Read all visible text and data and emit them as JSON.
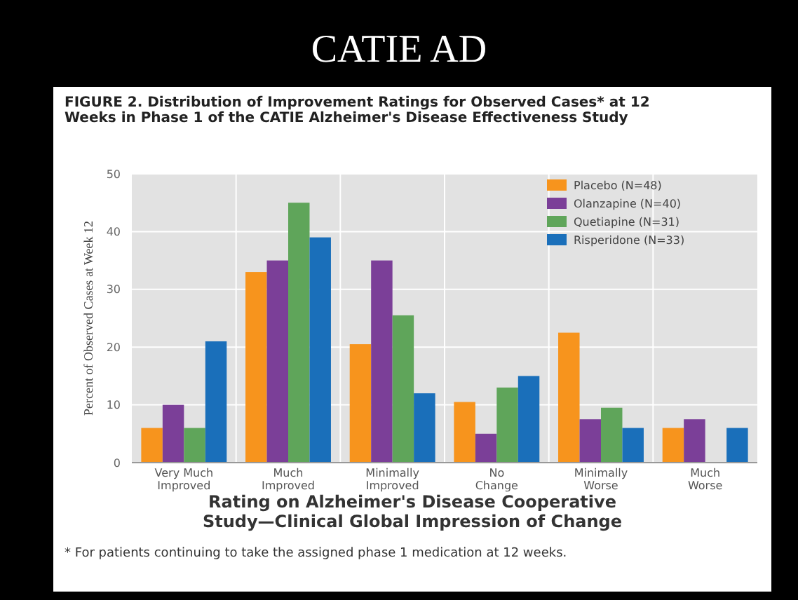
{
  "chart_data": {
    "type": "bar",
    "title": "CATIE AD",
    "subtitle": "FIGURE 2. Distribution of Improvement Ratings for Observed Cases* at 12 Weeks in Phase 1 of the CATIE Alzheimer's Disease Effectiveness Study",
    "xlabel": "Rating on Alzheimer's Disease Cooperative Study—Clinical Global Impression of Change",
    "ylabel": "Percent of Observed Cases at Week 12",
    "annotations": [
      "* For patients continuing to take the assigned phase 1 medication at 12 weeks."
    ],
    "categories": [
      "Very Much Improved",
      "Much Improved",
      "Minimally Improved",
      "No Change",
      "Minimally Worse",
      "Much Worse"
    ],
    "series": [
      {
        "name": "Placebo (N=48)",
        "color": "#f7941d",
        "values": [
          6,
          33,
          20.5,
          10.5,
          22.5,
          6
        ]
      },
      {
        "name": "Olanzapine (N=40)",
        "color": "#7b3f98",
        "values": [
          10,
          35,
          35,
          5,
          7.5,
          7.5
        ]
      },
      {
        "name": "Quetiapine (N=31)",
        "color": "#5fa55a",
        "values": [
          6,
          45,
          25.5,
          13,
          9.5,
          0
        ]
      },
      {
        "name": "Risperidone (N=33)",
        "color": "#1a6fba",
        "values": [
          21,
          39,
          12,
          15,
          6,
          6
        ]
      }
    ],
    "ylim": [
      0,
      50
    ],
    "yticks": [
      0,
      10,
      20,
      30,
      40,
      50
    ],
    "grid": true,
    "legend": "top right"
  }
}
